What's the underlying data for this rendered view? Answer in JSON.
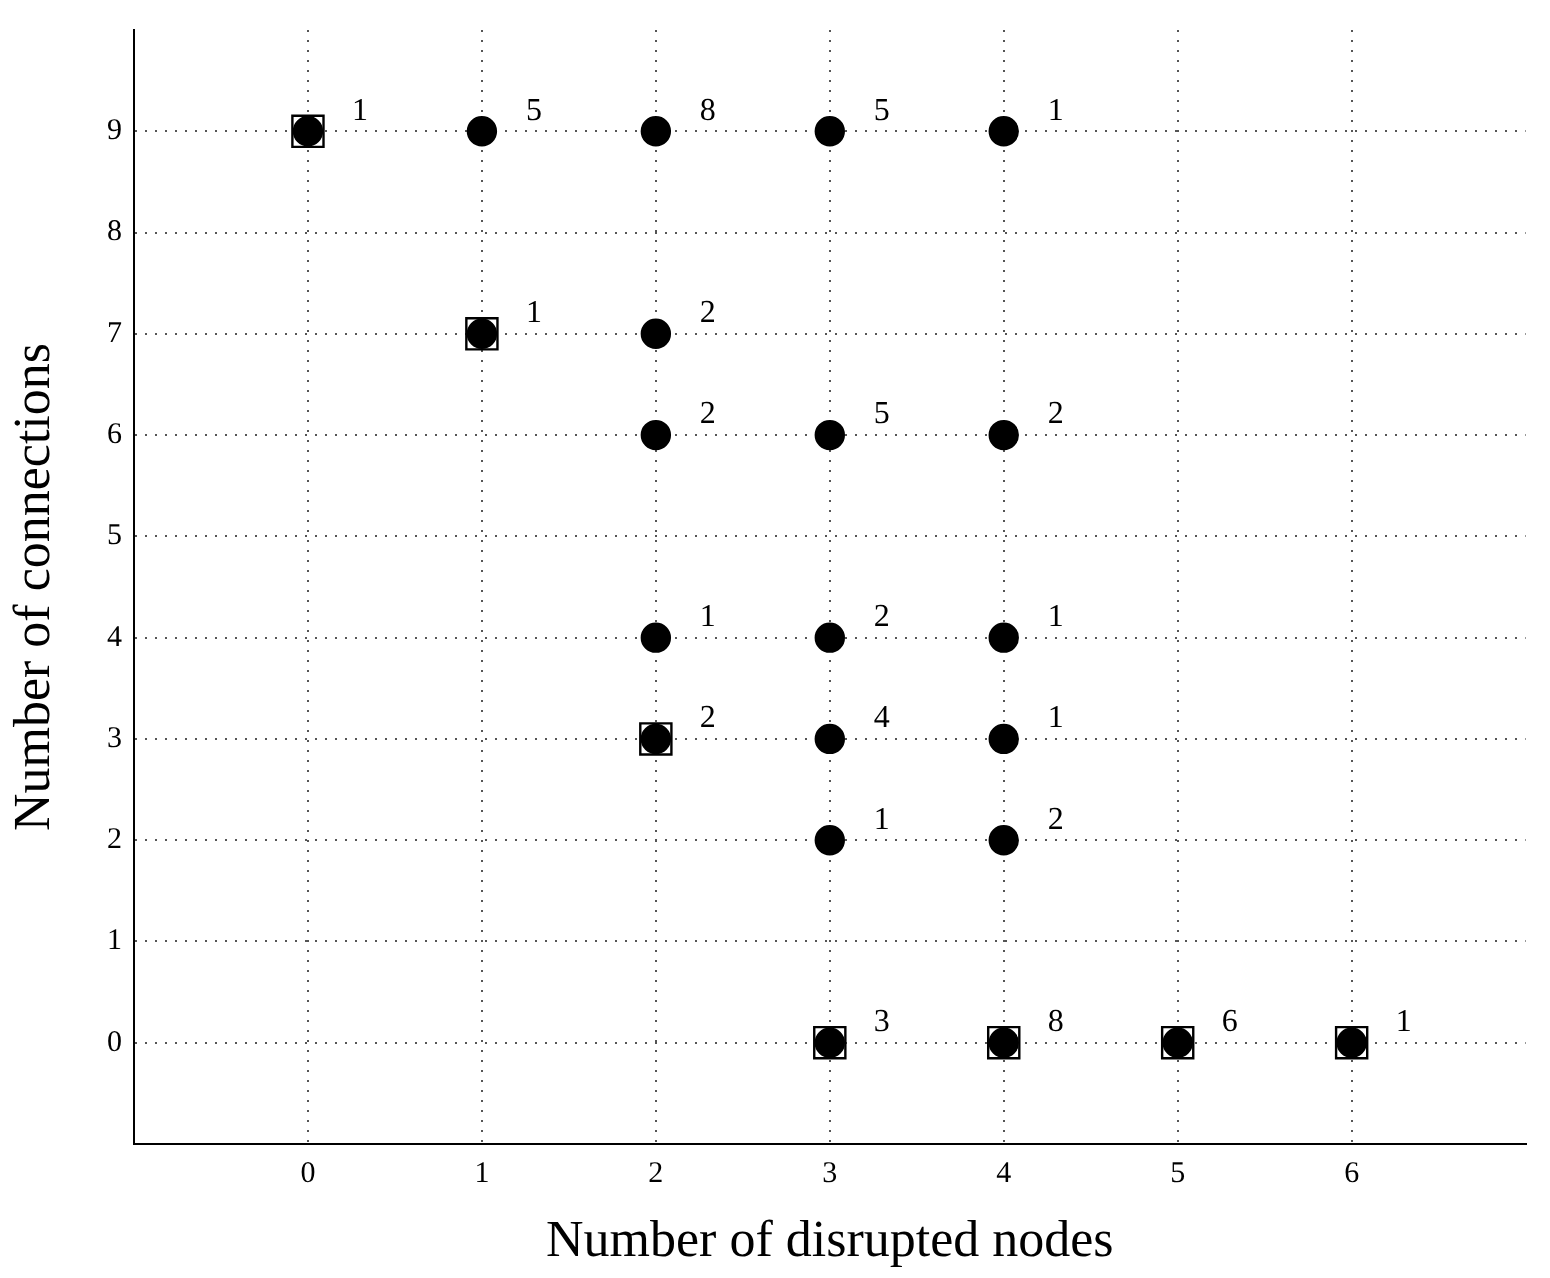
{
  "chart_data": {
    "type": "scatter",
    "xlabel": "Number of disrupted nodes",
    "ylabel": "Number of connections",
    "xlim": [
      -1,
      7
    ],
    "ylim": [
      -1,
      10
    ],
    "xticks": [
      0,
      1,
      2,
      3,
      4,
      5,
      6
    ],
    "yticks": [
      0,
      1,
      2,
      3,
      4,
      5,
      6,
      7,
      8,
      9
    ],
    "grid": true,
    "series": [
      {
        "color": "#000000",
        "marker": "square",
        "x": [
          0,
          1,
          2,
          3,
          4,
          5,
          6
        ],
        "values": [
          9,
          7,
          3,
          0,
          0,
          0,
          0
        ]
      },
      {
        "color": "#000000",
        "marker": "circle",
        "x": [
          0,
          1,
          2,
          3,
          4,
          1,
          2,
          2,
          3,
          4,
          2,
          3,
          4,
          2,
          3,
          4,
          3,
          4,
          3,
          4,
          5,
          6
        ],
        "values": [
          9,
          9,
          9,
          9,
          9,
          7,
          7,
          6,
          6,
          6,
          4,
          4,
          4,
          3,
          3,
          3,
          2,
          2,
          0,
          0,
          0,
          0
        ]
      }
    ],
    "annotations": [
      {
        "text": "1",
        "x": 0,
        "y": 9
      },
      {
        "text": "5",
        "x": 1,
        "y": 9
      },
      {
        "text": "8",
        "x": 2,
        "y": 9
      },
      {
        "text": "5",
        "x": 3,
        "y": 9
      },
      {
        "text": "1",
        "x": 4,
        "y": 9
      },
      {
        "text": "1",
        "x": 1,
        "y": 7
      },
      {
        "text": "2",
        "x": 2,
        "y": 7
      },
      {
        "text": "2",
        "x": 2,
        "y": 6
      },
      {
        "text": "5",
        "x": 3,
        "y": 6
      },
      {
        "text": "2",
        "x": 4,
        "y": 6
      },
      {
        "text": "1",
        "x": 2,
        "y": 4
      },
      {
        "text": "2",
        "x": 3,
        "y": 4
      },
      {
        "text": "1",
        "x": 4,
        "y": 4
      },
      {
        "text": "2",
        "x": 2,
        "y": 3
      },
      {
        "text": "4",
        "x": 3,
        "y": 3
      },
      {
        "text": "1",
        "x": 4,
        "y": 3
      },
      {
        "text": "1",
        "x": 3,
        "y": 2
      },
      {
        "text": "2",
        "x": 4,
        "y": 2
      },
      {
        "text": "3",
        "x": 3,
        "y": 0
      },
      {
        "text": "8",
        "x": 4,
        "y": 0
      },
      {
        "text": "6",
        "x": 5,
        "y": 0
      },
      {
        "text": "1",
        "x": 6,
        "y": 0
      }
    ]
  }
}
